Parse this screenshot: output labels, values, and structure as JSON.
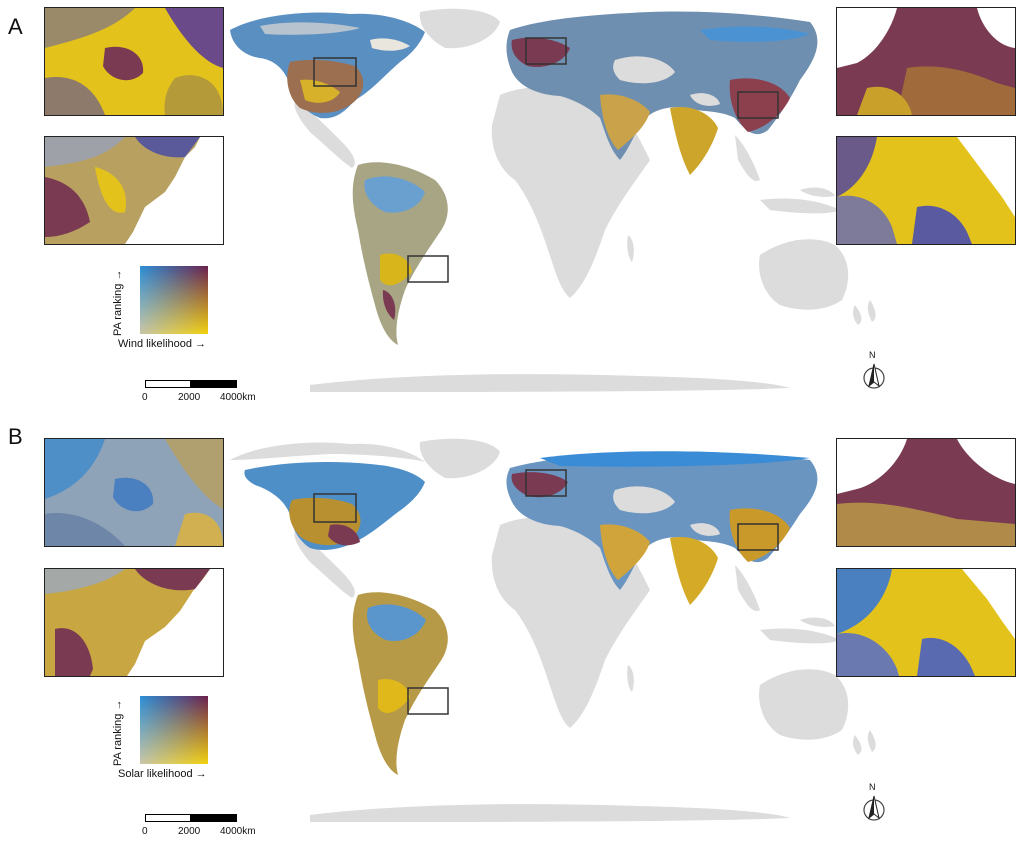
{
  "colors": {
    "land_background": "#dcdcdc",
    "low_low": "#c9c6a8",
    "high_pa": "#2b8fd6",
    "high_likelihood": "#f2d20c",
    "high_high": "#6b1f4e",
    "frame": "#222222"
  },
  "panels": [
    {
      "letter": "A",
      "legend": {
        "y_label": "PA ranking →",
        "x_label": "Wind likelihood →"
      },
      "scale_bar": {
        "labels": [
          "0",
          "2000",
          "4000km"
        ]
      },
      "north_arrow": {
        "label": "N",
        "icon": "north-arrow-icon"
      }
    },
    {
      "letter": "B",
      "legend": {
        "y_label": "PA ranking →",
        "x_label": "Solar likelihood →"
      },
      "scale_bar": {
        "labels": [
          "0",
          "2000",
          "4000km"
        ]
      },
      "north_arrow": {
        "label": "N",
        "icon": "north-arrow-icon"
      }
    }
  ]
}
